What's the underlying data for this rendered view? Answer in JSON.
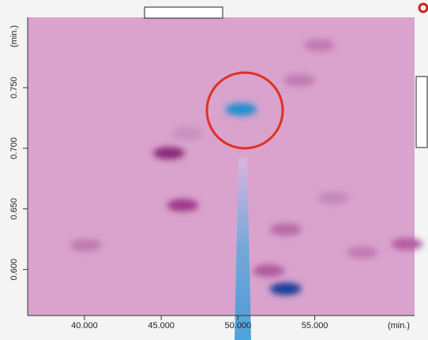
{
  "chart_data": {
    "type": "heatmap",
    "x_label": "(min.)",
    "y_label": "(min.)",
    "xlim": [
      36.3,
      61.5
    ],
    "xticks": [
      {
        "value": 40,
        "label": "40.000"
      },
      {
        "value": 45,
        "label": "45.000"
      },
      {
        "value": 50,
        "label": "50.000"
      },
      {
        "value": 55,
        "label": "55.000"
      }
    ],
    "ylim": [
      0.562,
      0.808
    ],
    "yticks": [
      {
        "value": 0.6,
        "label": "0.600"
      },
      {
        "value": 0.65,
        "label": "0.650"
      },
      {
        "value": 0.7,
        "label": "0.700"
      },
      {
        "value": 0.75,
        "label": "0.750"
      }
    ],
    "x": [
      50.2,
      53.1,
      45.5,
      46.4,
      40.1,
      52.0,
      53.1,
      55.3,
      54.0,
      56.2,
      58.1,
      61.0,
      46.7
    ],
    "values": [
      0.732,
      0.584,
      0.696,
      0.653,
      0.62,
      0.599,
      0.633,
      0.785,
      0.756,
      0.659,
      0.614,
      0.621,
      0.712
    ],
    "colors": [
      "#1e90d0",
      "#1a3c9a",
      "#8a2a78",
      "#a0388a",
      "#c07ab0",
      "#b05a9e",
      "#b86aa8",
      "#c27ab4",
      "#c07cb2",
      "#c488bc",
      "#c47cb6",
      "#b45ea2",
      "#c890c0"
    ]
  }
}
